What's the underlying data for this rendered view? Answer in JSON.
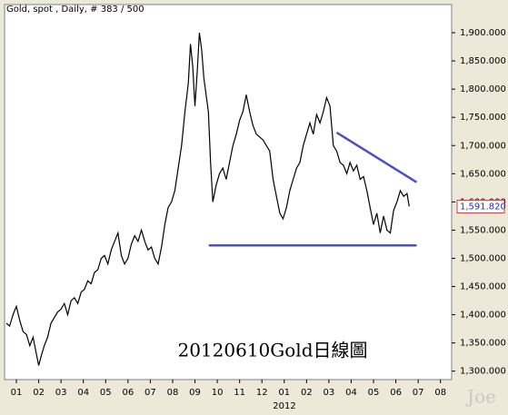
{
  "chart_data": {
    "type": "line",
    "title": "Gold, spot , Daily, # 383 / 500",
    "annotation": "20120610Gold日線圖",
    "watermark": "Joe",
    "x_year_label": "2012",
    "color": "#000000",
    "x": [
      -0.45,
      -0.3,
      -0.15,
      0,
      0.15,
      0.3,
      0.45,
      0.6,
      0.75,
      0.9,
      1.0,
      1.1,
      1.25,
      1.4,
      1.55,
      1.7,
      1.85,
      2.0,
      2.15,
      2.3,
      2.45,
      2.6,
      2.75,
      2.9,
      3.05,
      3.2,
      3.35,
      3.5,
      3.65,
      3.8,
      3.95,
      4.1,
      4.25,
      4.4,
      4.55,
      4.7,
      4.85,
      5.0,
      5.15,
      5.3,
      5.45,
      5.6,
      5.75,
      5.9,
      6.05,
      6.2,
      6.35,
      6.5,
      6.65,
      6.8,
      6.95,
      7.1,
      7.25,
      7.4,
      7.55,
      7.7,
      7.8,
      7.9,
      8.0,
      8.1,
      8.2,
      8.3,
      8.4,
      8.5,
      8.6,
      8.7,
      8.8,
      8.95,
      9.1,
      9.25,
      9.4,
      9.55,
      9.7,
      9.85,
      10.0,
      10.15,
      10.3,
      10.45,
      10.6,
      10.75,
      10.9,
      11.05,
      11.2,
      11.35,
      11.5,
      11.65,
      11.8,
      11.95,
      12.1,
      12.25,
      12.4,
      12.55,
      12.7,
      12.85,
      13.0,
      13.15,
      13.3,
      13.45,
      13.6,
      13.75,
      13.9,
      14.05,
      14.2,
      14.35,
      14.5,
      14.65,
      14.8,
      14.95,
      15.1,
      15.25,
      15.4,
      15.55,
      15.7,
      15.85,
      16.0,
      16.15,
      16.3,
      16.45,
      16.6,
      16.75,
      16.9,
      17.05,
      17.2,
      17.35,
      17.5,
      17.6
    ],
    "values": [
      1385,
      1380,
      1400,
      1415,
      1390,
      1370,
      1365,
      1345,
      1360,
      1330,
      1310,
      1325,
      1345,
      1360,
      1385,
      1395,
      1405,
      1410,
      1420,
      1400,
      1425,
      1430,
      1420,
      1440,
      1445,
      1460,
      1455,
      1475,
      1480,
      1500,
      1505,
      1490,
      1515,
      1530,
      1545,
      1505,
      1490,
      1500,
      1525,
      1540,
      1530,
      1550,
      1530,
      1515,
      1520,
      1500,
      1490,
      1520,
      1560,
      1590,
      1600,
      1620,
      1660,
      1700,
      1760,
      1810,
      1880,
      1840,
      1770,
      1830,
      1900,
      1870,
      1820,
      1790,
      1760,
      1670,
      1600,
      1630,
      1650,
      1660,
      1640,
      1670,
      1700,
      1720,
      1745,
      1760,
      1790,
      1760,
      1735,
      1720,
      1715,
      1710,
      1700,
      1690,
      1640,
      1610,
      1580,
      1570,
      1590,
      1620,
      1640,
      1660,
      1670,
      1700,
      1720,
      1740,
      1720,
      1755,
      1740,
      1760,
      1785,
      1770,
      1700,
      1690,
      1670,
      1665,
      1650,
      1670,
      1655,
      1665,
      1640,
      1645,
      1620,
      1590,
      1560,
      1580,
      1545,
      1575,
      1550,
      1545,
      1585,
      1600,
      1620,
      1610,
      1615,
      1591.82
    ],
    "xlim": [
      -0.53,
      19.5
    ],
    "ylim": [
      1285,
      1950
    ],
    "yticks": [
      {
        "value": 1300,
        "label": "1,300.000"
      },
      {
        "value": 1350,
        "label": "1,350.000"
      },
      {
        "value": 1400,
        "label": "1,400.000"
      },
      {
        "value": 1450,
        "label": "1,450.000"
      },
      {
        "value": 1500,
        "label": "1,500.000"
      },
      {
        "value": 1550,
        "label": "1,550.000"
      },
      {
        "value": 1600,
        "label": "1,600.000"
      },
      {
        "value": 1650,
        "label": "1,650.000"
      },
      {
        "value": 1700,
        "label": "1,700.000"
      },
      {
        "value": 1750,
        "label": "1,750.000"
      },
      {
        "value": 1800,
        "label": "1,800.000"
      },
      {
        "value": 1850,
        "label": "1,850.000"
      },
      {
        "value": 1900,
        "label": "1,900.000"
      }
    ],
    "xticks": [
      {
        "value": 0,
        "label": "01"
      },
      {
        "value": 1,
        "label": "02"
      },
      {
        "value": 2,
        "label": "03"
      },
      {
        "value": 3,
        "label": "04"
      },
      {
        "value": 4,
        "label": "05"
      },
      {
        "value": 5,
        "label": "06"
      },
      {
        "value": 6,
        "label": "07"
      },
      {
        "value": 7,
        "label": "08"
      },
      {
        "value": 8,
        "label": "09"
      },
      {
        "value": 9,
        "label": "10"
      },
      {
        "value": 10,
        "label": "11"
      },
      {
        "value": 11,
        "label": "12"
      },
      {
        "value": 12,
        "label": "01"
      },
      {
        "value": 13,
        "label": "02"
      },
      {
        "value": 14,
        "label": "03"
      },
      {
        "value": 15,
        "label": "04"
      },
      {
        "value": 16,
        "label": "05"
      },
      {
        "value": 17,
        "label": "06"
      },
      {
        "value": 18,
        "label": "07"
      },
      {
        "value": 19,
        "label": "08"
      }
    ],
    "current_price": {
      "value": 1591.82,
      "label": "1,591.820"
    },
    "trendlines": [
      {
        "x": [
          14.35,
          17.93
        ],
        "y": [
          1723,
          1635
        ],
        "color": "#4a50c8"
      },
      {
        "x": [
          8.62,
          17.93
        ],
        "y": [
          1523,
          1523
        ],
        "color": "#4a50c8"
      }
    ]
  }
}
